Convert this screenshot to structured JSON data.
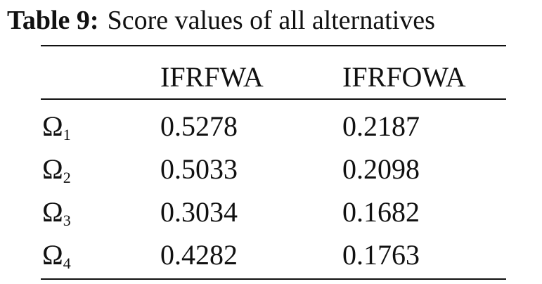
{
  "caption": {
    "label": "Table 9:",
    "text": "Score values of all alternatives"
  },
  "table": {
    "header": [
      "IFRFWA",
      "IFRFOWA"
    ],
    "rows": [
      {
        "alternative": {
          "symbol": "Ω",
          "subscript": "1"
        },
        "values": [
          0.5278,
          0.2187
        ]
      },
      {
        "alternative": {
          "symbol": "Ω",
          "subscript": "2"
        },
        "values": [
          0.5033,
          0.2098
        ]
      },
      {
        "alternative": {
          "symbol": "Ω",
          "subscript": "3"
        },
        "values": [
          0.3034,
          0.1682
        ]
      },
      {
        "alternative": {
          "symbol": "Ω",
          "subscript": "4"
        },
        "values": [
          0.4282,
          0.1763
        ]
      }
    ]
  }
}
